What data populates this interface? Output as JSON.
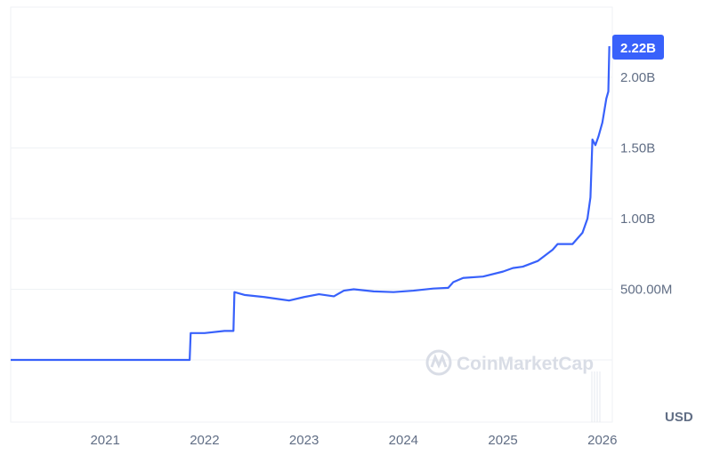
{
  "chart_data": {
    "type": "line",
    "title": "",
    "xlabel": "",
    "ylabel": "",
    "unit_label": "USD",
    "current_value_label": "2.22B",
    "watermark": "CoinMarketCap",
    "x_ticks": [
      "2021",
      "2022",
      "2023",
      "2024",
      "2025",
      "2026"
    ],
    "y_ticks": [
      {
        "value": 500,
        "label": "500.00M"
      },
      {
        "value": 1000,
        "label": "1.00B"
      },
      {
        "value": 1500,
        "label": "1.50B"
      },
      {
        "value": 2000,
        "label": "2.00B"
      }
    ],
    "xlim": [
      2020.05,
      2026.1
    ],
    "ylim_millions": [
      -440,
      2290
    ],
    "grid": true,
    "colors": {
      "line": "#3861fb",
      "badge": "#3861fb",
      "grid": "#eff2f5",
      "text": "#616e85"
    },
    "series": [
      {
        "x": [
          2020.05,
          2021.85,
          2021.86,
          2022.0,
          2022.2,
          2022.29,
          2022.3,
          2022.4,
          2022.6,
          2022.75,
          2022.85,
          2023.0,
          2023.15,
          2023.3,
          2023.4,
          2023.5,
          2023.7,
          2023.9,
          2024.1,
          2024.3,
          2024.45,
          2024.5,
          2024.6,
          2024.8,
          2025.0,
          2025.1,
          2025.2,
          2025.35,
          2025.5,
          2025.55,
          2025.7,
          2025.75,
          2025.8,
          2025.85,
          2025.88,
          2025.9,
          2025.93,
          2025.96,
          2026.0,
          2026.04,
          2026.06,
          2026.07
        ],
        "y_millions": [
          0,
          0,
          190,
          190,
          205,
          205,
          480,
          460,
          445,
          430,
          420,
          445,
          465,
          450,
          490,
          500,
          485,
          480,
          490,
          505,
          510,
          550,
          580,
          590,
          625,
          650,
          660,
          700,
          780,
          820,
          820,
          860,
          900,
          1000,
          1150,
          1560,
          1520,
          1580,
          1680,
          1850,
          1900,
          2220
        ]
      }
    ]
  }
}
